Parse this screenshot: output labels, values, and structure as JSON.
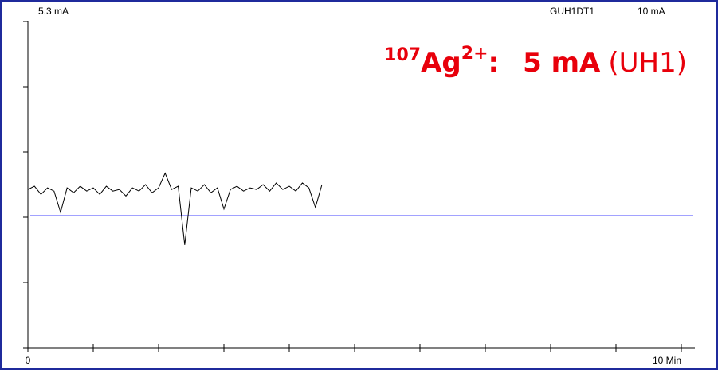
{
  "chart_data": {
    "type": "line",
    "reading": "5.3 mA",
    "channel": "GUH1DT1",
    "full_scale": "10 mA",
    "annotation": {
      "mass": "107",
      "element": "Ag",
      "charge": "2+",
      "separator": ":",
      "current": "5 mA",
      "source": "(UH1)"
    },
    "x": [
      0,
      0.1,
      0.2,
      0.3,
      0.4,
      0.5,
      0.6,
      0.7,
      0.8,
      0.9,
      1,
      1.1,
      1.2,
      1.3,
      1.4,
      1.5,
      1.6,
      1.7,
      1.8,
      1.9,
      2,
      2.1,
      2.2,
      2.3,
      2.4,
      2.5,
      2.6,
      2.7,
      2.8,
      2.9,
      3,
      3.1,
      3.2,
      3.3,
      3.4,
      3.5,
      3.6,
      3.7,
      3.8,
      3.9,
      4,
      4.1,
      4.2,
      4.3,
      4.4,
      4.5
    ],
    "values": [
      4.85,
      4.95,
      4.7,
      4.9,
      4.8,
      4.15,
      4.9,
      4.75,
      4.95,
      4.8,
      4.9,
      4.7,
      4.95,
      4.8,
      4.85,
      4.65,
      4.9,
      4.8,
      5.0,
      4.75,
      4.9,
      5.35,
      4.85,
      4.95,
      3.15,
      4.9,
      4.8,
      5.0,
      4.75,
      4.9,
      4.25,
      4.85,
      4.95,
      4.8,
      4.9,
      4.85,
      5.0,
      4.8,
      5.05,
      4.85,
      4.95,
      4.8,
      5.05,
      4.9,
      4.3,
      5.0
    ],
    "color": "#000000",
    "reference_level": 4.05,
    "reference_color": "#6b6bff",
    "annotation_color": "#e8000b",
    "xlim": [
      0,
      10
    ],
    "xticks": [
      0,
      1,
      2,
      3,
      4,
      5,
      6,
      7,
      8,
      9,
      10
    ],
    "x_axis_labels": [
      0,
      {
        "value": 10,
        "label": "10 Min"
      }
    ],
    "ylim": [
      0,
      10
    ],
    "yticks": [
      0,
      2,
      4,
      6,
      8,
      10
    ],
    "grid": false
  }
}
